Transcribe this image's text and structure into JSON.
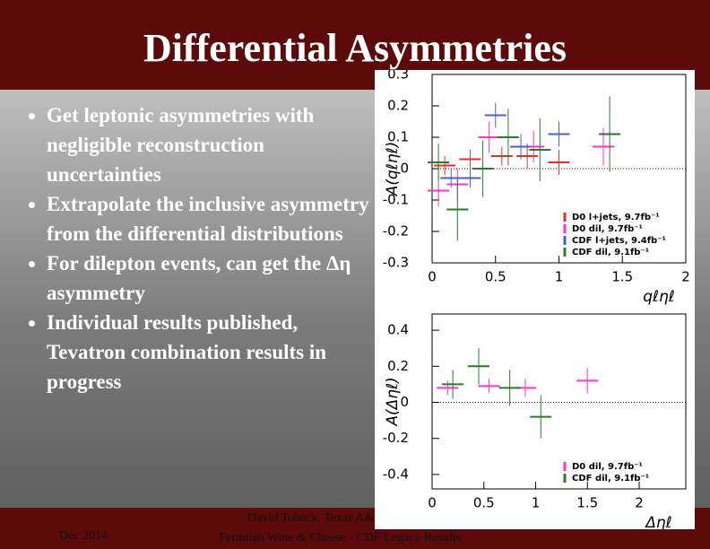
{
  "slide": {
    "title": "Differential Asymmetries",
    "bullets": [
      "Get leptonic asymmetries with negligible reconstruction uncertainties",
      "Extrapolate the inclusive asymmetry from the differential distributions",
      "For dilepton events, can get the Δη asymmetry",
      "Individual results published, Tevatron combination results in progress"
    ],
    "footer": {
      "date": "Dec 2014",
      "author": "David Toback, Texas A&M University",
      "event": "Fermilab Wine & Cheese - CDF Legacy Results"
    }
  },
  "chart_data": [
    {
      "type": "scatter",
      "x_label": "qℓηℓ",
      "y_label": "A(qℓηℓ)",
      "xlim": [
        0,
        2
      ],
      "ylim": [
        -0.3,
        0.3
      ],
      "xticks": [
        0,
        0.5,
        1,
        1.5,
        2
      ],
      "yticks": [
        -0.3,
        -0.2,
        -0.1,
        0,
        0.1,
        0.2,
        0.3
      ],
      "series": [
        {
          "name": "D0 l+jets, 9.7fb⁻¹",
          "color": "#e0302a",
          "x": [
            0.1,
            0.3,
            0.55,
            0.75,
            1.0
          ],
          "values": [
            0.01,
            0.03,
            0.04,
            0.04,
            0.02
          ],
          "errors": [
            0.03,
            0.03,
            0.03,
            0.04,
            0.04
          ]
        },
        {
          "name": "D0 dil, 9.7fb⁻¹",
          "color": "#ff33cc",
          "x": [
            0.05,
            0.2,
            0.45,
            0.8,
            1.35
          ],
          "values": [
            -0.07,
            -0.05,
            0.1,
            0.07,
            0.07
          ],
          "errors": [
            0.05,
            0.05,
            0.05,
            0.05,
            0.06
          ]
        },
        {
          "name": "CDF l+jets, 9.4fb⁻¹",
          "color": "#4a5fd0",
          "x": [
            0.15,
            0.3,
            0.5,
            0.7,
            1.0
          ],
          "values": [
            -0.03,
            -0.03,
            0.17,
            0.07,
            0.11
          ],
          "errors": [
            0.03,
            0.03,
            0.04,
            0.04,
            0.04
          ]
        },
        {
          "name": "CDF dil, 9.1fb⁻¹",
          "color": "#2d7a2d",
          "x": [
            0.05,
            0.2,
            0.4,
            0.6,
            0.85,
            1.4
          ],
          "values": [
            0.02,
            -0.13,
            0.0,
            0.1,
            0.06,
            0.11
          ],
          "errors": [
            0.06,
            0.1,
            0.09,
            0.09,
            0.1,
            0.12
          ]
        }
      ]
    },
    {
      "type": "scatter",
      "x_label": "Δηℓ",
      "y_label": "A(Δηℓ)",
      "xlim": [
        0,
        2.45
      ],
      "ylim": [
        -0.48,
        0.49
      ],
      "xticks": [
        0,
        0.5,
        1,
        1.5,
        2
      ],
      "yticks": [
        -0.4,
        -0.2,
        0,
        0.2,
        0.4
      ],
      "series": [
        {
          "name": "D0 dil, 9.7fb⁻¹",
          "color": "#ff33cc",
          "x": [
            0.15,
            0.55,
            0.9,
            1.5
          ],
          "values": [
            0.08,
            0.09,
            0.08,
            0.12
          ],
          "errors": [
            0.04,
            0.04,
            0.05,
            0.07
          ]
        },
        {
          "name": "CDF dil, 9.1fb⁻¹",
          "color": "#2d7a2d",
          "x": [
            0.2,
            0.45,
            0.75,
            1.05
          ],
          "values": [
            0.1,
            0.2,
            0.08,
            -0.08
          ],
          "errors": [
            0.08,
            0.1,
            0.1,
            0.12
          ]
        }
      ]
    }
  ]
}
